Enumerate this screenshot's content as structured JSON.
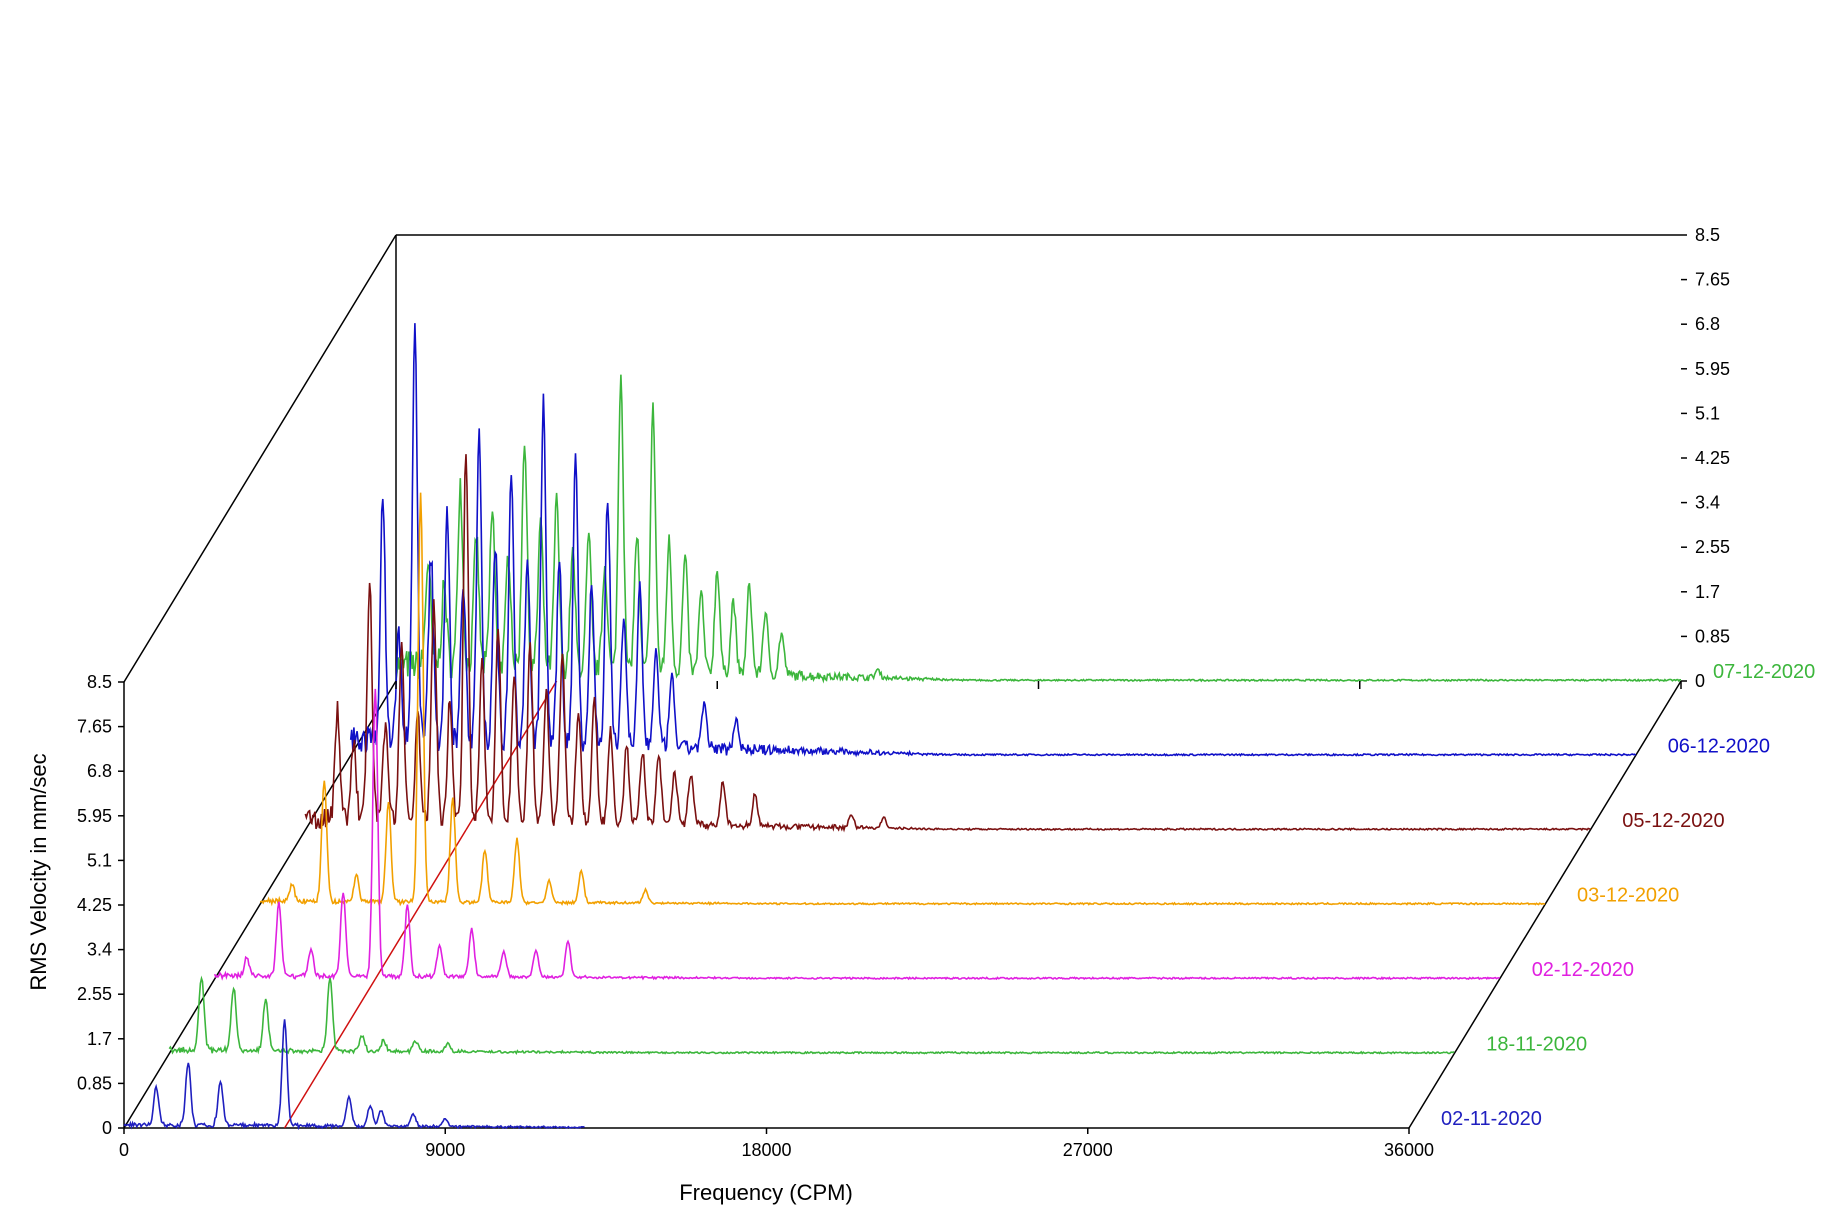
{
  "chart_data": {
    "type": "line",
    "style": "3D waterfall spectrum",
    "xlabel": "Frequency (CPM)",
    "ylabel": "RMS Velocity in mm/sec",
    "xlim": [
      0,
      36000
    ],
    "ylim": [
      0,
      8.5
    ],
    "x_ticks": [
      "0",
      "9000",
      "18000",
      "27000",
      "36000"
    ],
    "y_ticks": [
      "0",
      "0.85",
      "1.7",
      "2.55",
      "3.4",
      "4.25",
      "5.1",
      "5.95",
      "6.8",
      "7.65",
      "8.5"
    ],
    "grid": false,
    "series": [
      {
        "name": "02-11-2020",
        "color": "#1f1fbf",
        "peaks": [
          [
            900,
            0.7
          ],
          [
            1800,
            1.2
          ],
          [
            2700,
            0.8
          ],
          [
            4500,
            2.0
          ],
          [
            6300,
            0.55
          ],
          [
            6900,
            0.4
          ],
          [
            7200,
            0.3
          ],
          [
            8100,
            0.25
          ],
          [
            9000,
            0.15
          ]
        ],
        "noise": 0.05,
        "decay_end": 12900,
        "baseline_end": 12900
      },
      {
        "name": "18-11-2020",
        "color": "#3cb63c",
        "peaks": [
          [
            900,
            1.4
          ],
          [
            1800,
            1.2
          ],
          [
            2700,
            1.0
          ],
          [
            4500,
            1.4
          ],
          [
            5400,
            0.3
          ],
          [
            6000,
            0.2
          ],
          [
            6900,
            0.2
          ],
          [
            7800,
            0.15
          ]
        ],
        "noise": 0.05,
        "decay_end": 14000,
        "baseline_end": 36000
      },
      {
        "name": "02-12-2020",
        "color": "#e020e0",
        "peaks": [
          [
            900,
            0.35
          ],
          [
            1800,
            1.4
          ],
          [
            2700,
            0.5
          ],
          [
            3600,
            1.6
          ],
          [
            4500,
            5.5
          ],
          [
            5400,
            1.35
          ],
          [
            6300,
            0.6
          ],
          [
            7200,
            0.9
          ],
          [
            8100,
            0.5
          ],
          [
            9000,
            0.5
          ],
          [
            9900,
            0.7
          ]
        ],
        "noise": 0.05,
        "decay_end": 16000,
        "baseline_end": 36000
      },
      {
        "name": "03-12-2020",
        "color": "#f2a000",
        "peaks": [
          [
            900,
            0.3
          ],
          [
            1800,
            2.3
          ],
          [
            2700,
            0.5
          ],
          [
            3600,
            1.9
          ],
          [
            4500,
            7.8
          ],
          [
            5400,
            2.0
          ],
          [
            6300,
            1.0
          ],
          [
            7200,
            1.2
          ],
          [
            8100,
            0.4
          ],
          [
            9000,
            0.6
          ],
          [
            10800,
            0.25
          ]
        ],
        "noise": 0.05,
        "decay_end": 15000,
        "baseline_end": 36000
      },
      {
        "name": "05-12-2020",
        "color": "#7a1010",
        "peaks": [
          [
            900,
            2.1
          ],
          [
            1350,
            1.5
          ],
          [
            1800,
            4.5
          ],
          [
            2250,
            1.9
          ],
          [
            2700,
            3.3
          ],
          [
            3150,
            2.0
          ],
          [
            3600,
            4.2
          ],
          [
            4050,
            2.3
          ],
          [
            4500,
            7.1
          ],
          [
            4950,
            3.0
          ],
          [
            5400,
            3.8
          ],
          [
            5850,
            2.8
          ],
          [
            6300,
            3.4
          ],
          [
            6750,
            2.5
          ],
          [
            7200,
            3.2
          ],
          [
            7650,
            2.2
          ],
          [
            8100,
            2.4
          ],
          [
            8550,
            1.8
          ],
          [
            9000,
            1.5
          ],
          [
            9450,
            1.4
          ],
          [
            9900,
            1.3
          ],
          [
            10350,
            1.0
          ],
          [
            10800,
            1.0
          ],
          [
            11700,
            0.8
          ],
          [
            12600,
            0.6
          ],
          [
            15300,
            0.25
          ],
          [
            16200,
            0.2
          ]
        ],
        "noise": 0.2,
        "decay_end": 18000,
        "baseline_end": 36000
      },
      {
        "name": "06-12-2020",
        "color": "#1010c8",
        "peaks": [
          [
            900,
            4.5
          ],
          [
            1350,
            2.0
          ],
          [
            1800,
            7.8
          ],
          [
            2250,
            3.5
          ],
          [
            2700,
            4.3
          ],
          [
            3150,
            3.0
          ],
          [
            3600,
            6.0
          ],
          [
            4050,
            3.8
          ],
          [
            4500,
            5.3
          ],
          [
            4950,
            3.5
          ],
          [
            5400,
            6.5
          ],
          [
            5850,
            3.5
          ],
          [
            6300,
            5.5
          ],
          [
            6750,
            3.0
          ],
          [
            7200,
            4.7
          ],
          [
            7650,
            2.5
          ],
          [
            8100,
            3.0
          ],
          [
            8550,
            1.8
          ],
          [
            9000,
            1.3
          ],
          [
            9900,
            0.8
          ],
          [
            10800,
            0.6
          ]
        ],
        "noise": 0.3,
        "decay_end": 17000,
        "baseline_end": 36000
      },
      {
        "name": "07-12-2020",
        "color": "#3cb63c",
        "peaks": [
          [
            900,
            2.0
          ],
          [
            1350,
            1.5
          ],
          [
            1800,
            3.5
          ],
          [
            2250,
            2.5
          ],
          [
            2700,
            3.0
          ],
          [
            3150,
            2.2
          ],
          [
            3600,
            4.4
          ],
          [
            4050,
            2.8
          ],
          [
            4500,
            3.2
          ],
          [
            4950,
            2.2
          ],
          [
            5400,
            2.5
          ],
          [
            5850,
            2.0
          ],
          [
            6300,
            5.7
          ],
          [
            6750,
            2.6
          ],
          [
            7200,
            5.0
          ],
          [
            7650,
            2.5
          ],
          [
            8100,
            2.2
          ],
          [
            8550,
            1.5
          ],
          [
            9000,
            2.0
          ],
          [
            9450,
            1.4
          ],
          [
            9900,
            1.7
          ],
          [
            10350,
            1.2
          ],
          [
            10800,
            0.8
          ],
          [
            13500,
            0.15
          ]
        ],
        "noise": 0.3,
        "decay_end": 16000,
        "baseline_end": 36000
      }
    ]
  }
}
